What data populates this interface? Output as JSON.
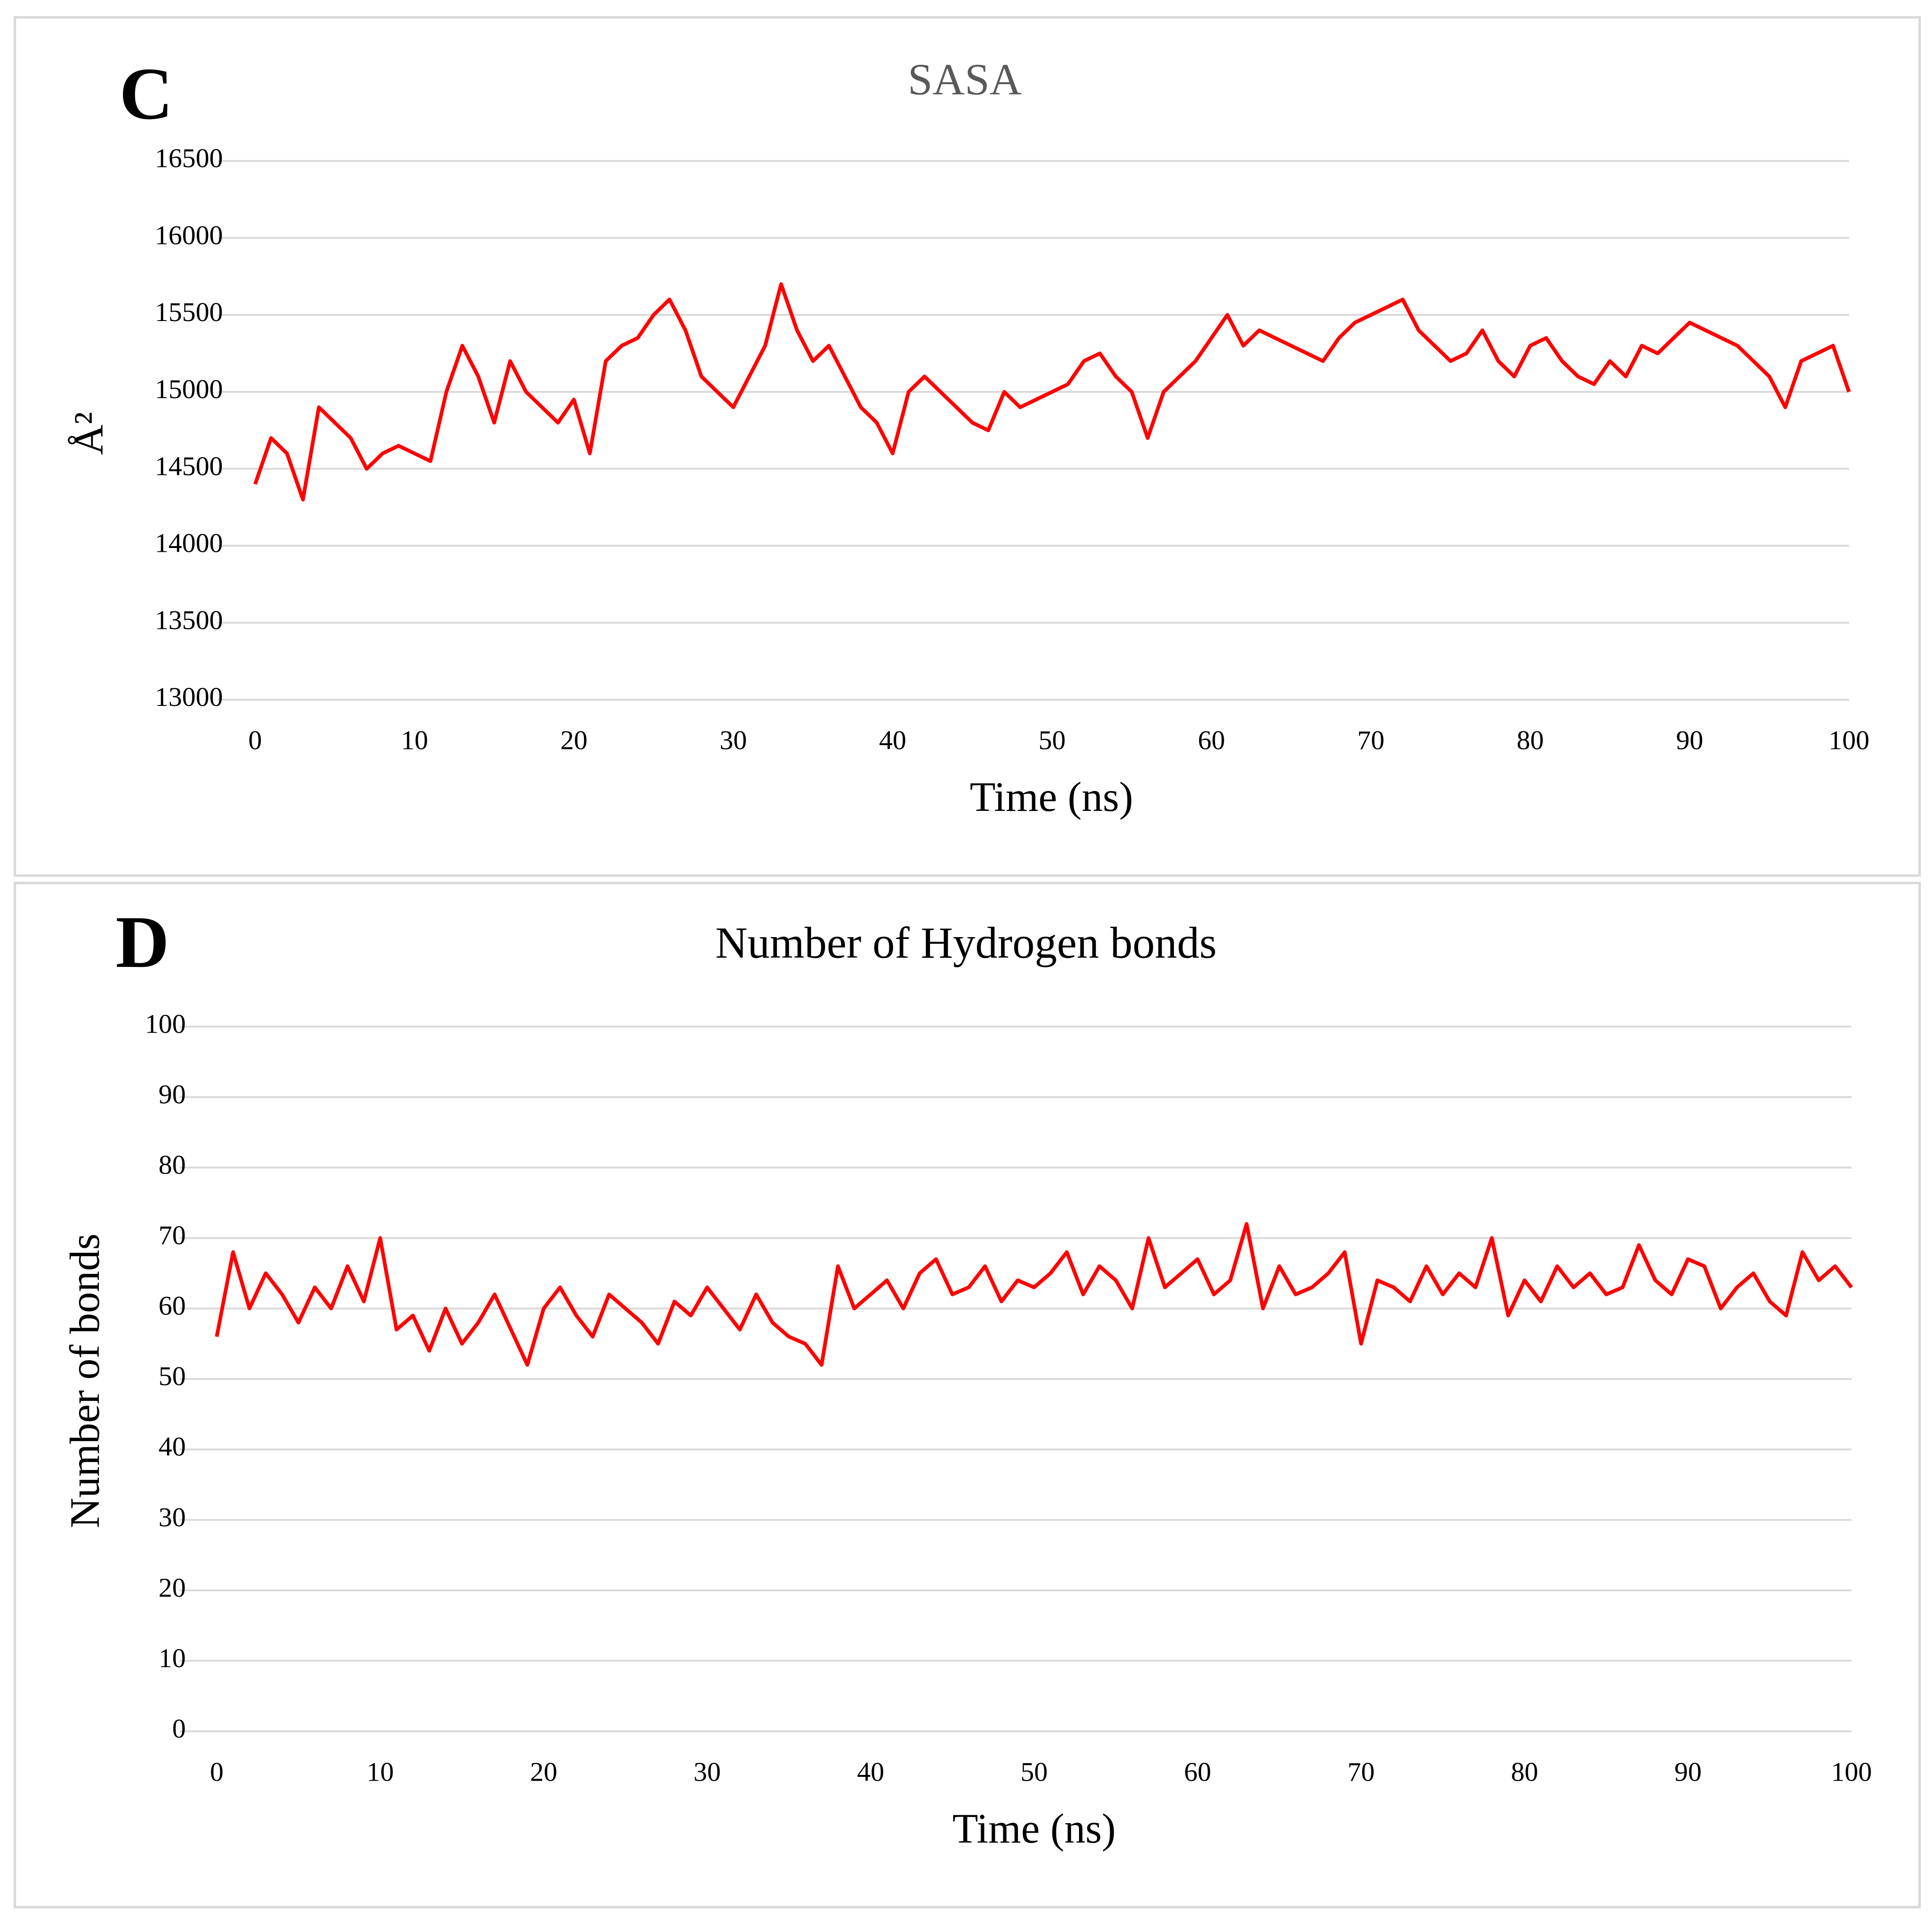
{
  "chart_data": [
    {
      "type": "line",
      "label": "C",
      "title": "SASA",
      "x_label": "Time (ns)",
      "y_label": "Å²",
      "x": [
        0,
        1,
        2,
        3,
        4,
        5,
        6,
        7,
        8,
        9,
        10,
        11,
        12,
        13,
        14,
        15,
        16,
        17,
        18,
        19,
        20,
        21,
        22,
        23,
        24,
        25,
        26,
        27,
        28,
        29,
        30,
        31,
        32,
        33,
        34,
        35,
        36,
        37,
        38,
        39,
        40,
        41,
        42,
        43,
        44,
        45,
        46,
        47,
        48,
        49,
        50,
        51,
        52,
        53,
        54,
        55,
        56,
        57,
        58,
        59,
        60,
        61,
        62,
        63,
        64,
        65,
        66,
        67,
        68,
        69,
        70,
        71,
        72,
        73,
        74,
        75,
        76,
        77,
        78,
        79,
        80,
        81,
        82,
        83,
        84,
        85,
        86,
        87,
        88,
        89,
        90,
        91,
        92,
        93,
        94,
        95,
        96,
        97,
        98,
        99,
        100
      ],
      "values": [
        14400,
        14700,
        14600,
        14300,
        14900,
        14800,
        14700,
        14500,
        14600,
        14650,
        14600,
        14550,
        15000,
        15300,
        15100,
        14800,
        15200,
        15000,
        14900,
        14800,
        14950,
        14600,
        15200,
        15300,
        15350,
        15500,
        15600,
        15400,
        15100,
        15000,
        14900,
        15100,
        15300,
        15700,
        15400,
        15200,
        15300,
        15100,
        14900,
        14800,
        14600,
        15000,
        15100,
        15000,
        14900,
        14800,
        14750,
        15000,
        14900,
        14950,
        15000,
        15050,
        15200,
        15250,
        15100,
        15000,
        14700,
        15000,
        15100,
        15200,
        15350,
        15500,
        15300,
        15400,
        15350,
        15300,
        15250,
        15200,
        15350,
        15450,
        15500,
        15550,
        15600,
        15400,
        15300,
        15200,
        15250,
        15400,
        15200,
        15100,
        15300,
        15350,
        15200,
        15100,
        15050,
        15200,
        15100,
        15300,
        15250,
        15350,
        15450,
        15400,
        15350,
        15300,
        15200,
        15100,
        14900,
        15200,
        15250,
        15300,
        15000
      ],
      "color": "#ff0000",
      "xlim": [
        0,
        100
      ],
      "xticks": [
        0,
        10,
        20,
        30,
        40,
        50,
        60,
        70,
        80,
        90,
        100
      ],
      "ylim": [
        13000,
        16500
      ],
      "yticks": [
        13000,
        13500,
        14000,
        14500,
        15000,
        15500,
        16000,
        16500
      ],
      "grid": true
    },
    {
      "type": "line",
      "label": "D",
      "title": "Number of Hydrogen bonds",
      "x_label": "Time (ns)",
      "y_label": "Number of bonds",
      "x": [
        0,
        1,
        2,
        3,
        4,
        5,
        6,
        7,
        8,
        9,
        10,
        11,
        12,
        13,
        14,
        15,
        16,
        17,
        18,
        19,
        20,
        21,
        22,
        23,
        24,
        25,
        26,
        27,
        28,
        29,
        30,
        31,
        32,
        33,
        34,
        35,
        36,
        37,
        38,
        39,
        40,
        41,
        42,
        43,
        44,
        45,
        46,
        47,
        48,
        49,
        50,
        51,
        52,
        53,
        54,
        55,
        56,
        57,
        58,
        59,
        60,
        61,
        62,
        63,
        64,
        65,
        66,
        67,
        68,
        69,
        70,
        71,
        72,
        73,
        74,
        75,
        76,
        77,
        78,
        79,
        80,
        81,
        82,
        83,
        84,
        85,
        86,
        87,
        88,
        89,
        90,
        91,
        92,
        93,
        94,
        95,
        96,
        97,
        98,
        99,
        100
      ],
      "values": [
        56,
        68,
        60,
        65,
        62,
        58,
        63,
        60,
        66,
        61,
        70,
        57,
        59,
        54,
        60,
        55,
        58,
        62,
        57,
        52,
        60,
        63,
        59,
        56,
        62,
        60,
        58,
        55,
        61,
        59,
        63,
        60,
        57,
        62,
        58,
        56,
        55,
        52,
        66,
        60,
        62,
        64,
        60,
        65,
        67,
        62,
        63,
        66,
        61,
        64,
        63,
        65,
        68,
        62,
        66,
        64,
        60,
        70,
        63,
        65,
        67,
        62,
        64,
        72,
        60,
        66,
        62,
        63,
        65,
        68,
        55,
        64,
        63,
        61,
        66,
        62,
        65,
        63,
        70,
        59,
        64,
        61,
        66,
        63,
        65,
        62,
        63,
        69,
        64,
        62,
        67,
        66,
        60,
        63,
        65,
        61,
        59,
        68,
        64,
        66,
        63
      ],
      "color": "#ff0000",
      "xlim": [
        0,
        100
      ],
      "xticks": [
        0,
        10,
        20,
        30,
        40,
        50,
        60,
        70,
        80,
        90,
        100
      ],
      "ylim": [
        0,
        100
      ],
      "yticks": [
        0,
        10,
        20,
        30,
        40,
        50,
        60,
        70,
        80,
        90,
        100
      ],
      "grid": true
    }
  ]
}
